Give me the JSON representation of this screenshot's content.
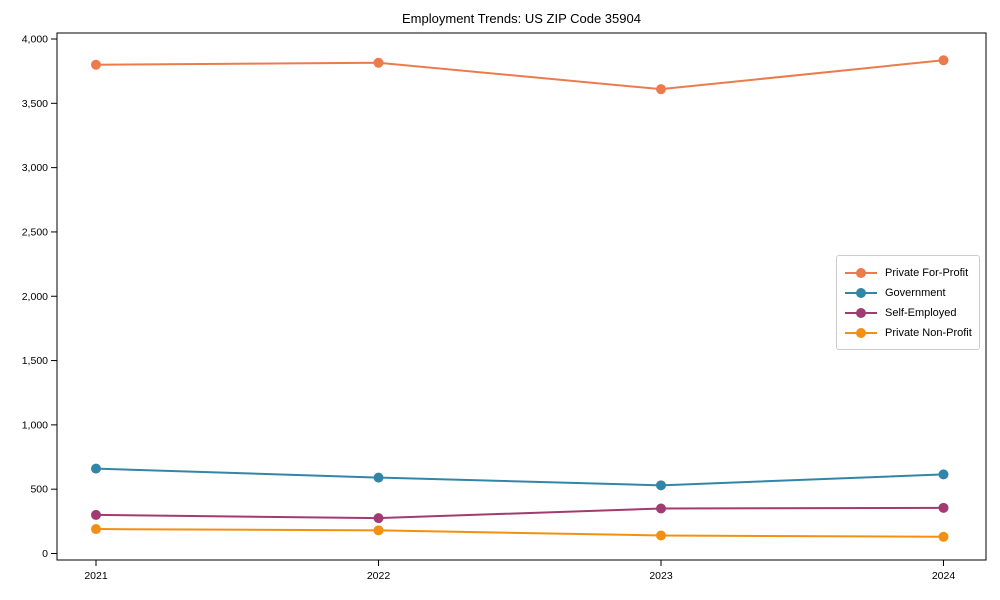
{
  "figure": {
    "title": "Employment Trends: US ZIP Code 35904"
  },
  "chart_data": {
    "type": "line",
    "title": "Employment Trends: US ZIP Code 35904",
    "xlabel": "",
    "ylabel": "",
    "x": [
      "2021",
      "2022",
      "2023",
      "2024"
    ],
    "series": [
      {
        "name": "Private For-Profit",
        "color": "#EB7B4D",
        "values": [
          3800,
          3815,
          3610,
          3835
        ]
      },
      {
        "name": "Government",
        "color": "#3186A8",
        "values": [
          660,
          590,
          530,
          615
        ]
      },
      {
        "name": "Self-Employed",
        "color": "#A23B72",
        "values": [
          300,
          275,
          350,
          355
        ]
      },
      {
        "name": "Private Non-Profit",
        "color": "#F29111",
        "values": [
          190,
          180,
          140,
          130
        ]
      }
    ],
    "yticks": [
      0,
      500,
      1000,
      1500,
      2000,
      2500,
      3000,
      3500,
      4000
    ],
    "ytick_labels": [
      "0",
      "500",
      "1,000",
      "1,500",
      "2,000",
      "2,500",
      "3,000",
      "3,500",
      "4,000"
    ],
    "xtick_labels": [
      "2021",
      "2022",
      "2023",
      "2024"
    ],
    "ylim": [
      0,
      4000
    ],
    "grid": false,
    "legend_position": "center-right",
    "marker": "circle",
    "axis_color": "#000000"
  }
}
